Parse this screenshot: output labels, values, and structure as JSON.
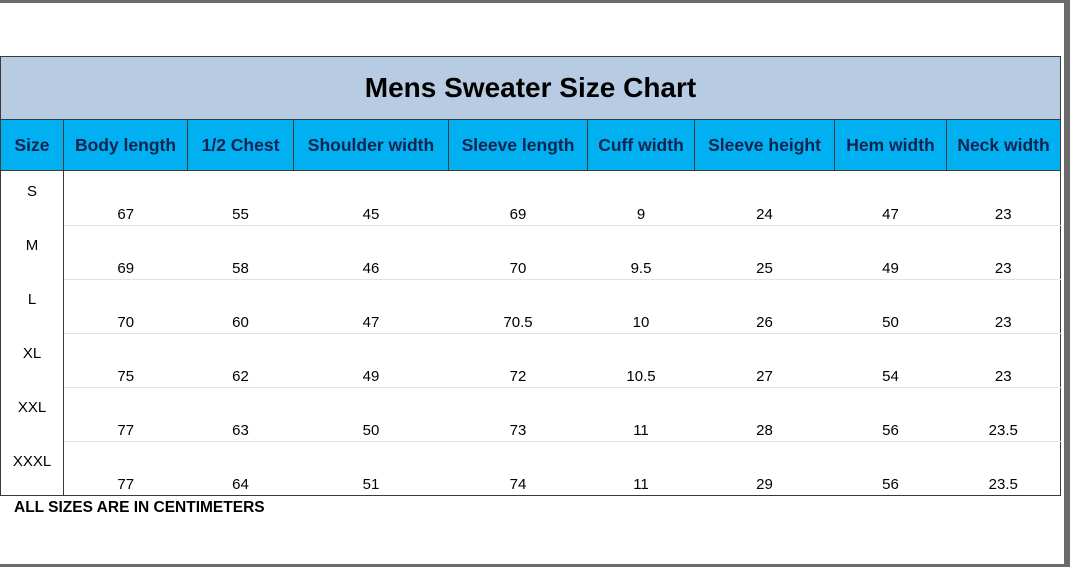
{
  "title": "Mens Sweater Size Chart",
  "columns": [
    "Size",
    "Body length",
    "1/2 Chest",
    "Shoulder width",
    "Sleeve length",
    "Cuff width",
    "Sleeve height",
    "Hem width",
    "Neck width"
  ],
  "rows": [
    [
      "S",
      "67",
      "55",
      "45",
      "69",
      "9",
      "24",
      "47",
      "23"
    ],
    [
      "M",
      "69",
      "58",
      "46",
      "70",
      "9.5",
      "25",
      "49",
      "23"
    ],
    [
      "L",
      "70",
      "60",
      "47",
      "70.5",
      "10",
      "26",
      "50",
      "23"
    ],
    [
      "XL",
      "75",
      "62",
      "49",
      "72",
      "10.5",
      "27",
      "54",
      "23"
    ],
    [
      "XXL",
      "77",
      "63",
      "50",
      "73",
      "11",
      "28",
      "56",
      "23.5"
    ],
    [
      "XXXL",
      "77",
      "64",
      "51",
      "74",
      "11",
      "29",
      "56",
      "23.5"
    ]
  ],
  "note": "ALL SIZES ARE IN CENTIMETERS",
  "colors": {
    "title_bg": "#b7cbe2",
    "header_bg": "#00b0f0",
    "header_text": "#0f2350"
  }
}
